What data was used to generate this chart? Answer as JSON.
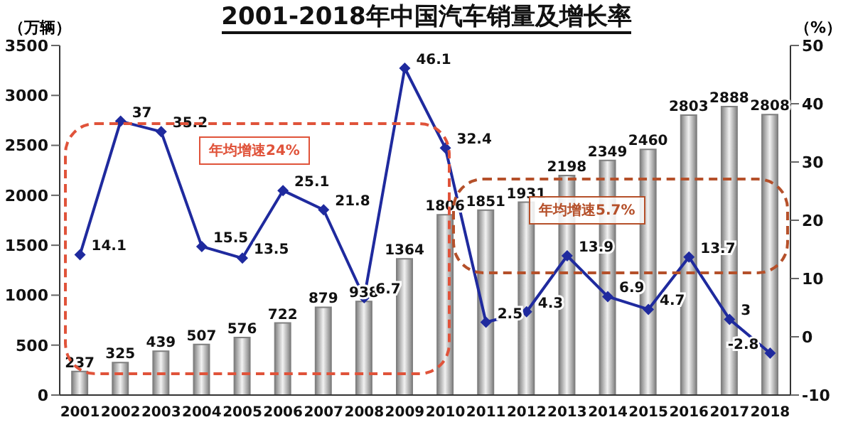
{
  "chart_data": {
    "type": "bar",
    "title": "2001-2018年中国汽车销量及增长率",
    "ylabel": "（万辆）",
    "y2label": "（%）",
    "categories": [
      "2001",
      "2002",
      "2003",
      "2004",
      "2005",
      "2006",
      "2007",
      "2008",
      "2009",
      "2010",
      "2011",
      "2012",
      "2013",
      "2014",
      "2015",
      "2016",
      "2017",
      "2018"
    ],
    "series": [
      {
        "color": "#808080",
        "values": [
          237,
          325,
          439,
          507,
          576,
          722,
          879,
          938,
          1364,
          1806,
          1851,
          1931,
          2198,
          2349,
          2460,
          2803,
          2888,
          2808
        ]
      },
      {
        "type": "line",
        "axis": "y2",
        "color": "#1f2a9e",
        "values": [
          14.1,
          37,
          35.2,
          15.5,
          13.5,
          25.1,
          21.8,
          6.7,
          46.1,
          32.4,
          2.5,
          4.3,
          13.9,
          6.9,
          4.7,
          13.7,
          3,
          -2.8
        ]
      }
    ],
    "ylim": [
      0,
      3500
    ],
    "yticks": [
      0,
      500,
      1000,
      1500,
      2000,
      2500,
      3000,
      3500
    ],
    "y2lim": [
      -10,
      50
    ],
    "y2ticks": [
      -10,
      0,
      10,
      20,
      30,
      40,
      50
    ],
    "annotations": [
      "年均增速24%",
      "年均增速5.7%"
    ],
    "data_labels": true,
    "marker": "diamond",
    "line_style": "solid",
    "grid": false,
    "legend": false
  }
}
